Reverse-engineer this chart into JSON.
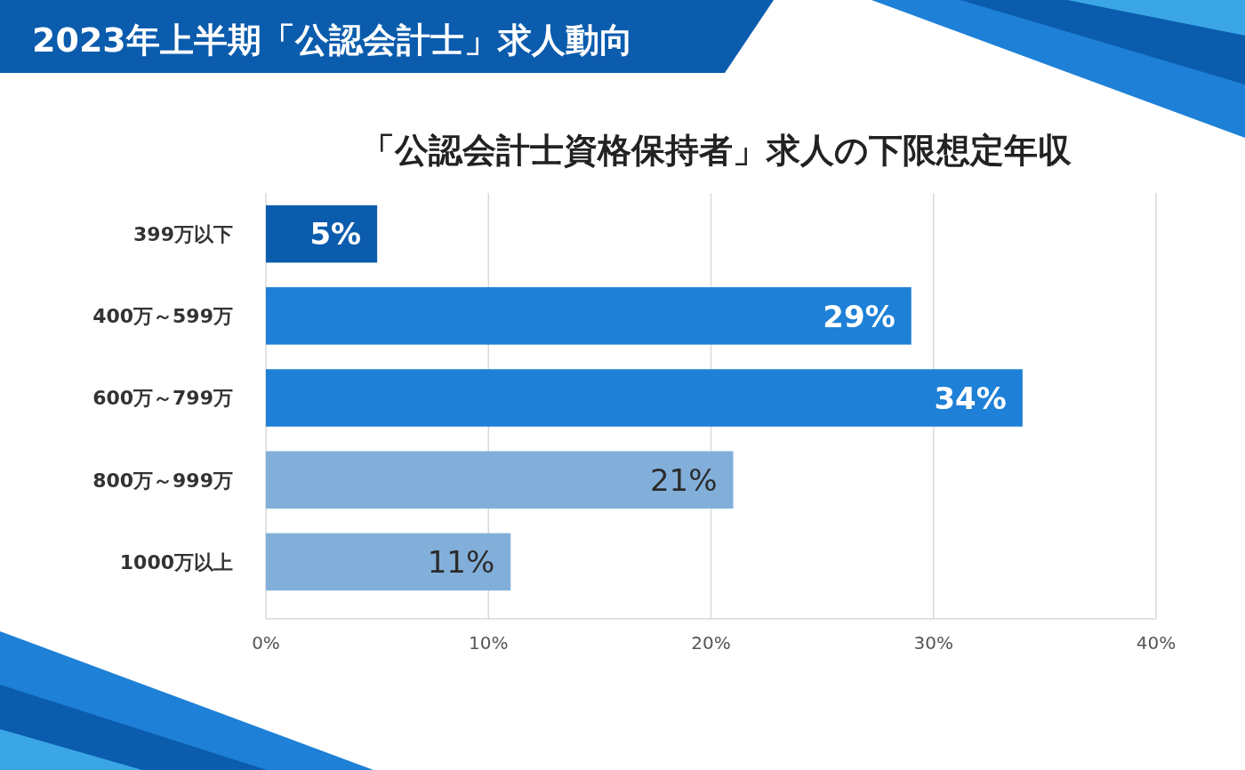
{
  "chart_data": {
    "type": "bar",
    "orientation": "horizontal",
    "title": "2023年上半期「公認会計士」求人動向",
    "subtitle": "「公認会計士資格保持者」求人の下限想定年収",
    "categories": [
      "399万以下",
      "400万～599万",
      "600万～799万",
      "800万～999万",
      "1000万以上"
    ],
    "values": [
      5,
      29,
      34,
      21,
      11
    ],
    "colors": [
      "#0b5cad",
      "#1e80d6",
      "#1e80d6",
      "#82afd9",
      "#82afd9"
    ],
    "xlim": [
      0,
      40
    ],
    "xticks": [
      {
        "value": 0,
        "label": "0%"
      },
      {
        "value": 10,
        "label": "10%"
      },
      {
        "value": 20,
        "label": "20%"
      },
      {
        "value": 30,
        "label": "30%"
      },
      {
        "value": 40,
        "label": "40%"
      }
    ],
    "value_labels": [
      "5%",
      "29%",
      "34%",
      "21%",
      "11%"
    ],
    "grid": "x"
  }
}
